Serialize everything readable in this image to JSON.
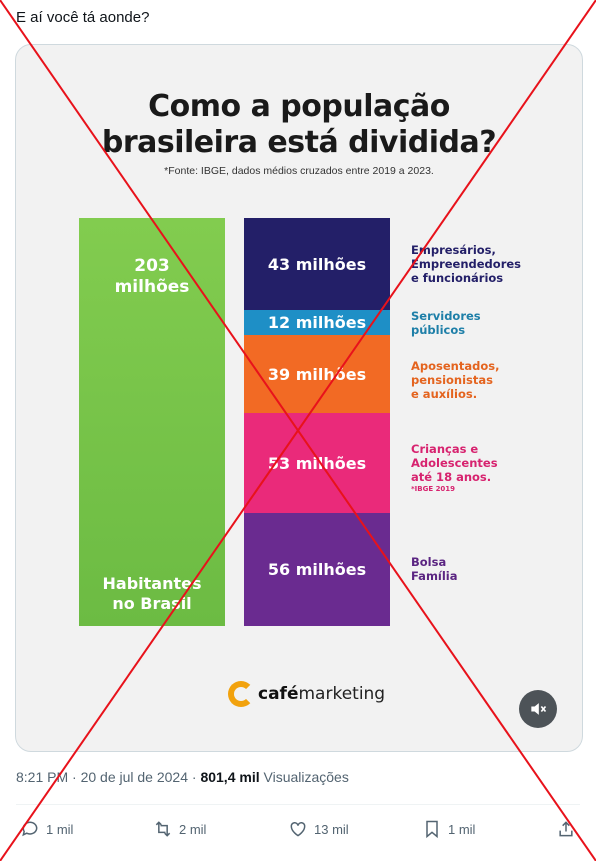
{
  "post": {
    "text": "E aí você tá aonde?"
  },
  "infographic": {
    "title_line1": "Como a população",
    "title_line2": "brasileira está dividida?",
    "source": "*Fonte: IBGE, dados médios cruzados entre 2019 a 2023.",
    "total": {
      "value_line1": "203",
      "value_line2": "milhões",
      "label_line1": "Habitantes",
      "label_line2": "no Brasil",
      "color": "#6cbb43"
    },
    "segments": [
      {
        "value": "43 milhões",
        "color": "#231f68",
        "label_color": "#231f68",
        "label": [
          "Empresários,",
          "Empreendedores",
          "e funcionários"
        ],
        "note": ""
      },
      {
        "value": "12 milhões",
        "color": "#1e8fc6",
        "label_color": "#1e7fa8",
        "label": [
          "Servidores",
          "públicos"
        ],
        "note": ""
      },
      {
        "value": "39 milhões",
        "color": "#f26a24",
        "label_color": "#e4641f",
        "label": [
          "Aposentados,",
          "pensionistas",
          "e auxílios."
        ],
        "note": ""
      },
      {
        "value": "53 milhões",
        "color": "#ea2a7a",
        "label_color": "#d7236f",
        "label": [
          "Crianças e",
          "Adolescentes",
          "até 18 anos."
        ],
        "note": "*IBGE 2019"
      },
      {
        "value": "56 milhões",
        "color": "#6a2b90",
        "label_color": "#5b2582",
        "label": [
          "Bolsa",
          "Família"
        ],
        "note": ""
      }
    ],
    "logo": {
      "brand_bold": "café",
      "brand_rest": "marketing"
    }
  },
  "meta": {
    "time": "8:21 PM · 20 de jul de 2024 · ",
    "views_count": "801,4 mil",
    "views_label": " Visualizações"
  },
  "actions": {
    "replies": "1 mil",
    "reposts": "2 mil",
    "likes": "13 mil",
    "bookmarks": "1 mil"
  },
  "icons": [
    "reply-icon",
    "repost-icon",
    "like-icon",
    "bookmark-icon",
    "share-icon",
    "mute-icon"
  ]
}
